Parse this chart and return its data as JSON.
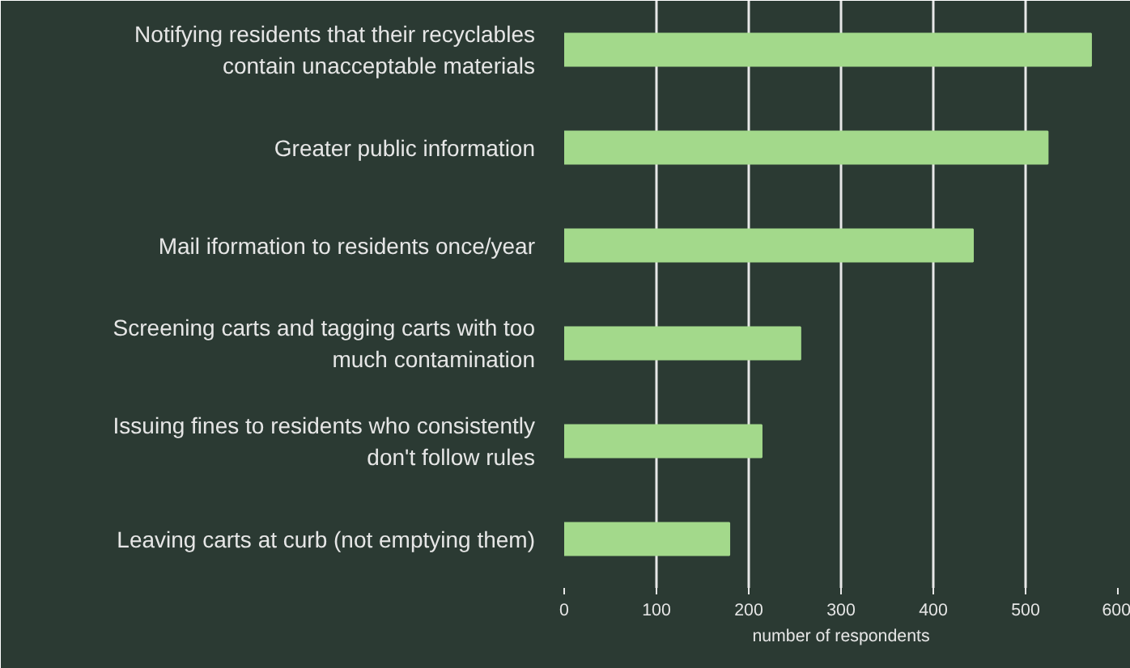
{
  "chart_data": {
    "type": "bar",
    "orientation": "horizontal",
    "categories": [
      "Notifying residents that their recyclables\ncontain unacceptable materials",
      "Greater public information",
      "Mail iformation to residents once/year",
      "Screening carts and tagging carts with too\nmuch contamination",
      "Issuing fines to residents who consistently\ndon't follow rules",
      "Leaving carts at curb (not emptying them)"
    ],
    "values": [
      571,
      524,
      443,
      256,
      214,
      179
    ],
    "color": "#a3d98b",
    "xlabel": "number of respondents",
    "xlim": [
      0,
      600
    ],
    "xticks": [
      0,
      100,
      200,
      300,
      400,
      500,
      600
    ],
    "grid": "x"
  }
}
